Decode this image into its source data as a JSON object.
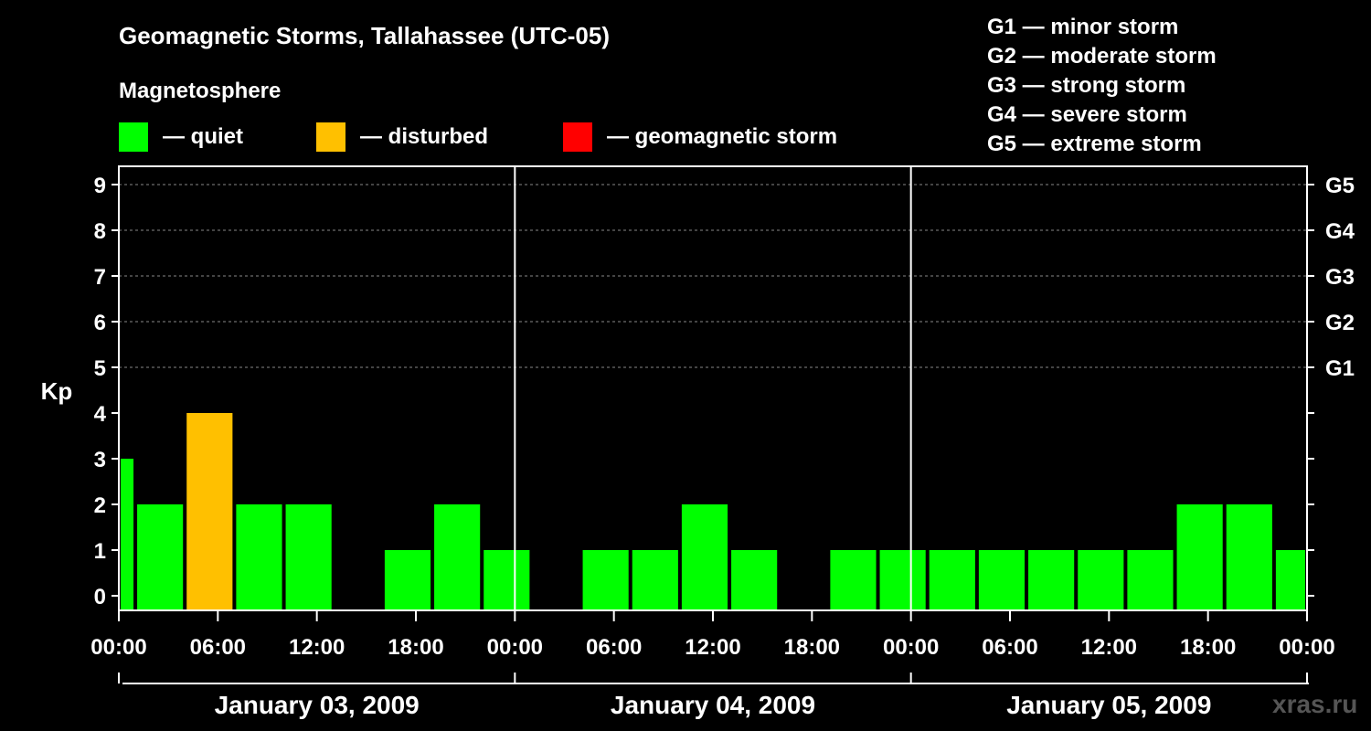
{
  "title": "Geomagnetic Storms, Tallahassee (UTC-05)",
  "magnetosphere": {
    "title": "Magnetosphere",
    "items": [
      {
        "color": "#00ff00",
        "label": "— quiet"
      },
      {
        "color": "#ffc000",
        "label": "— disturbed"
      },
      {
        "color": "#ff0000",
        "label": "— geomagnetic storm"
      }
    ]
  },
  "storm_levels": [
    "G1 — minor storm",
    "G2 — moderate storm",
    "G3 — strong storm",
    "G4 — severe storm",
    "G5 — extreme storm"
  ],
  "credit": "xras.ru",
  "chart_data": {
    "type": "bar",
    "ylabel": "Kp",
    "ylim": [
      0,
      9
    ],
    "yticks": [
      "0",
      "1",
      "2",
      "3",
      "4",
      "5",
      "6",
      "7",
      "8",
      "9"
    ],
    "right_ticks": [
      {
        "kp": 5,
        "label": "G1"
      },
      {
        "kp": 6,
        "label": "G2"
      },
      {
        "kp": 7,
        "label": "G3"
      },
      {
        "kp": 8,
        "label": "G4"
      },
      {
        "kp": 9,
        "label": "G5"
      }
    ],
    "xlim_hours": [
      0,
      72
    ],
    "xticks": [
      "00:00",
      "06:00",
      "12:00",
      "18:00",
      "00:00",
      "06:00",
      "12:00",
      "18:00",
      "00:00",
      "06:00",
      "12:00",
      "18:00",
      "00:00"
    ],
    "days": [
      "January 03, 2009",
      "January 04, 2009",
      "January 05, 2009"
    ],
    "grid": "dashed horizontal at Kp 5-9",
    "bars": [
      {
        "start": "2009-01-03 00:00",
        "end": "2009-01-03 01:00",
        "kp": 3,
        "status": "quiet"
      },
      {
        "start": "2009-01-03 01:00",
        "end": "2009-01-03 04:00",
        "kp": 2,
        "status": "quiet"
      },
      {
        "start": "2009-01-03 04:00",
        "end": "2009-01-03 07:00",
        "kp": 4,
        "status": "disturbed"
      },
      {
        "start": "2009-01-03 07:00",
        "end": "2009-01-03 10:00",
        "kp": 2,
        "status": "quiet"
      },
      {
        "start": "2009-01-03 10:00",
        "end": "2009-01-03 13:00",
        "kp": 2,
        "status": "quiet"
      },
      {
        "start": "2009-01-03 13:00",
        "end": "2009-01-03 16:00",
        "kp": 0,
        "status": "quiet"
      },
      {
        "start": "2009-01-03 16:00",
        "end": "2009-01-03 19:00",
        "kp": 1,
        "status": "quiet"
      },
      {
        "start": "2009-01-03 19:00",
        "end": "2009-01-03 22:00",
        "kp": 2,
        "status": "quiet"
      },
      {
        "start": "2009-01-03 22:00",
        "end": "2009-01-04 01:00",
        "kp": 1,
        "status": "quiet"
      },
      {
        "start": "2009-01-04 01:00",
        "end": "2009-01-04 04:00",
        "kp": 0,
        "status": "quiet"
      },
      {
        "start": "2009-01-04 04:00",
        "end": "2009-01-04 07:00",
        "kp": 1,
        "status": "quiet"
      },
      {
        "start": "2009-01-04 07:00",
        "end": "2009-01-04 10:00",
        "kp": 1,
        "status": "quiet"
      },
      {
        "start": "2009-01-04 10:00",
        "end": "2009-01-04 13:00",
        "kp": 2,
        "status": "quiet"
      },
      {
        "start": "2009-01-04 13:00",
        "end": "2009-01-04 16:00",
        "kp": 1,
        "status": "quiet"
      },
      {
        "start": "2009-01-04 16:00",
        "end": "2009-01-04 19:00",
        "kp": 0,
        "status": "quiet"
      },
      {
        "start": "2009-01-04 19:00",
        "end": "2009-01-04 22:00",
        "kp": 1,
        "status": "quiet"
      },
      {
        "start": "2009-01-04 22:00",
        "end": "2009-01-05 01:00",
        "kp": 1,
        "status": "quiet"
      },
      {
        "start": "2009-01-05 01:00",
        "end": "2009-01-05 04:00",
        "kp": 1,
        "status": "quiet"
      },
      {
        "start": "2009-01-05 04:00",
        "end": "2009-01-05 07:00",
        "kp": 1,
        "status": "quiet"
      },
      {
        "start": "2009-01-05 07:00",
        "end": "2009-01-05 10:00",
        "kp": 1,
        "status": "quiet"
      },
      {
        "start": "2009-01-05 10:00",
        "end": "2009-01-05 13:00",
        "kp": 1,
        "status": "quiet"
      },
      {
        "start": "2009-01-05 13:00",
        "end": "2009-01-05 16:00",
        "kp": 1,
        "status": "quiet"
      },
      {
        "start": "2009-01-05 16:00",
        "end": "2009-01-05 19:00",
        "kp": 2,
        "status": "quiet"
      },
      {
        "start": "2009-01-05 19:00",
        "end": "2009-01-05 22:00",
        "kp": 2,
        "status": "quiet"
      },
      {
        "start": "2009-01-05 22:00",
        "end": "2009-01-06 00:00",
        "kp": 1,
        "status": "quiet"
      }
    ],
    "status_colors": {
      "quiet": "#00ff00",
      "disturbed": "#ffc000",
      "storm": "#ff0000"
    }
  }
}
